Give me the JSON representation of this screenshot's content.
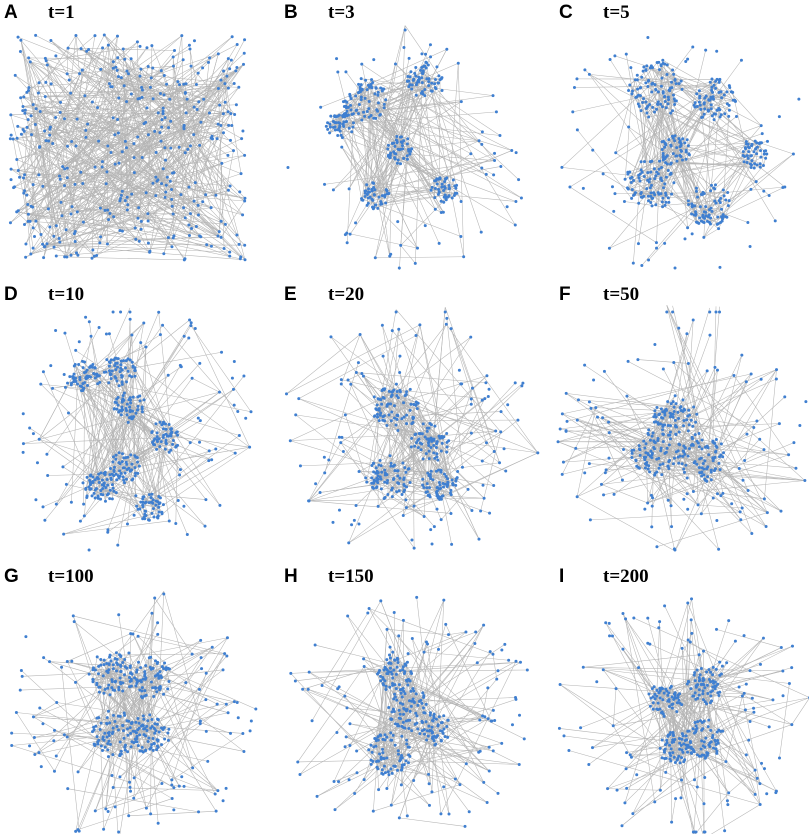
{
  "panels": [
    {
      "letter": "A",
      "time": "t=1"
    },
    {
      "letter": "B",
      "time": "t=3"
    },
    {
      "letter": "C",
      "time": "t=5"
    },
    {
      "letter": "D",
      "time": "t=10"
    },
    {
      "letter": "E",
      "time": "t=20"
    },
    {
      "letter": "F",
      "time": "t=50"
    },
    {
      "letter": "G",
      "time": "t=100"
    },
    {
      "letter": "H",
      "time": "t=150"
    },
    {
      "letter": "I",
      "time": "t=200"
    }
  ],
  "colors": {
    "node": "#3f7fd0",
    "edge": "#b5b5b5",
    "background": "#ffffff"
  }
}
